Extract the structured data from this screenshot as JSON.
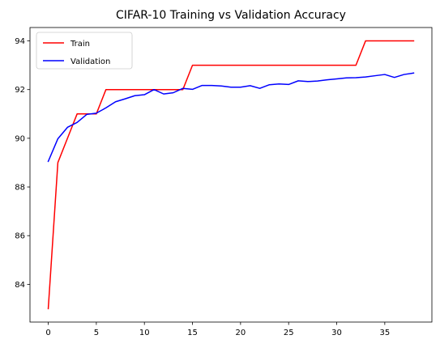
{
  "chart_data": {
    "type": "line",
    "title": "CIFAR-10 Training vs Validation Accuracy",
    "xlabel": "",
    "ylabel": "",
    "xlim": [
      -1.9,
      39.9
    ],
    "ylim": [
      82.45,
      94.55
    ],
    "x_ticks": [
      0,
      5,
      10,
      15,
      20,
      25,
      30,
      35
    ],
    "y_ticks": [
      84,
      86,
      88,
      90,
      92,
      94
    ],
    "grid": false,
    "legend_position": "top-left",
    "series": [
      {
        "name": "Train",
        "color": "#ff0000",
        "x": [
          0,
          1,
          2,
          3,
          4,
          5,
          6,
          7,
          8,
          9,
          10,
          11,
          12,
          13,
          14,
          15,
          16,
          17,
          18,
          19,
          20,
          21,
          22,
          23,
          24,
          25,
          26,
          27,
          28,
          29,
          30,
          31,
          32,
          33,
          34,
          35,
          36,
          37,
          38
        ],
        "values": [
          83,
          89,
          90,
          91,
          91,
          91,
          92,
          92,
          92,
          92,
          92,
          92,
          92,
          92,
          92,
          93,
          93,
          93,
          93,
          93,
          93,
          93,
          93,
          93,
          93,
          93,
          93,
          93,
          93,
          93,
          93,
          93,
          93,
          94,
          94,
          94,
          94,
          94,
          94
        ]
      },
      {
        "name": "Validation",
        "color": "#0000ff",
        "x": [
          0,
          1,
          2,
          3,
          4,
          5,
          6,
          7,
          8,
          9,
          10,
          11,
          12,
          13,
          14,
          15,
          16,
          17,
          18,
          19,
          20,
          21,
          22,
          23,
          24,
          25,
          26,
          27,
          28,
          29,
          30,
          31,
          32,
          33,
          34,
          35,
          36,
          37,
          38
        ],
        "values": [
          89.05,
          89.98,
          90.45,
          90.65,
          90.98,
          91.03,
          91.25,
          91.5,
          91.62,
          91.75,
          91.79,
          92.0,
          91.82,
          91.87,
          92.05,
          92.01,
          92.17,
          92.17,
          92.15,
          92.1,
          92.1,
          92.16,
          92.05,
          92.2,
          92.23,
          92.21,
          92.36,
          92.33,
          92.35,
          92.4,
          92.44,
          92.48,
          92.49,
          92.52,
          92.57,
          92.62,
          92.5,
          92.62,
          92.68
        ]
      }
    ]
  }
}
